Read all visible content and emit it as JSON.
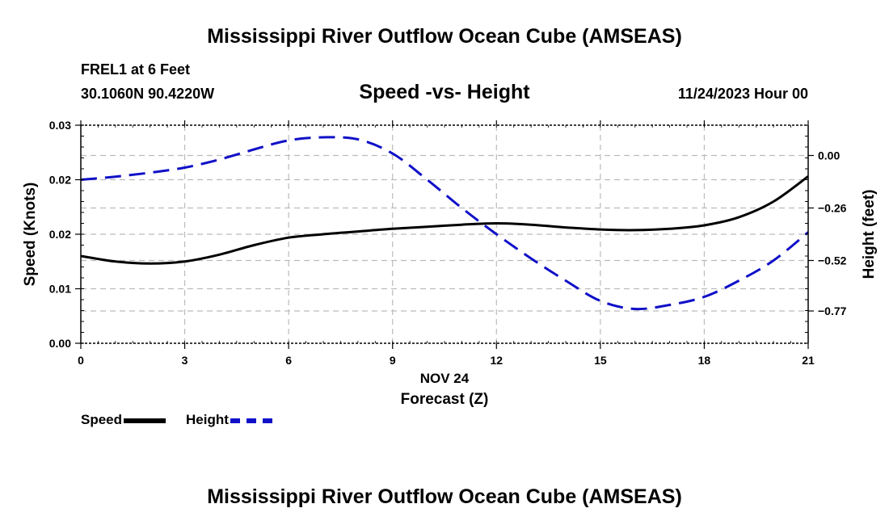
{
  "header": {
    "title_top": "Mississippi River Outflow Ocean Cube (AMSEAS)",
    "station": "FREL1 at 6 Feet",
    "coords": "30.1060N  90.4220W",
    "plot_title": "Speed -vs- Height",
    "datetime": "11/24/2023 Hour 00",
    "title_bottom": "Mississippi River Outflow Ocean Cube (AMSEAS)"
  },
  "legend": {
    "speed_label": "Speed",
    "height_label": "Height"
  },
  "colors": {
    "speed": "#000000",
    "height": "#1010c8",
    "grid": "#bbbbbb"
  },
  "chart_data": {
    "type": "line",
    "title": "Speed -vs- Height",
    "xlabel": "Forecast (Z)",
    "xlabel_date": "NOV 24",
    "ylabel": "Speed (Knots)",
    "y2label": "Height (feet)",
    "xlim": [
      0,
      21
    ],
    "ylim": [
      0,
      0.032
    ],
    "y2lim": [
      -0.93,
      0.15
    ],
    "x_ticks": [
      0,
      3,
      6,
      9,
      12,
      15,
      18,
      21
    ],
    "x_tick_labels": [
      "0",
      "3",
      "6",
      "9",
      "12",
      "15",
      "18",
      "21"
    ],
    "y_ticks": [
      0,
      0.008,
      0.016,
      0.024,
      0.032
    ],
    "y_tick_labels": [
      "0.00",
      "0.01",
      "0.02",
      "0.02",
      "0.03"
    ],
    "y2_ticks": [
      0.0,
      -0.26,
      -0.52,
      -0.77
    ],
    "y2_tick_labels": [
      "0.00",
      "−0.26",
      "−0.52",
      "−0.77"
    ],
    "series": [
      {
        "name": "Speed",
        "axis": "left",
        "style": "solid",
        "x": [
          0,
          1,
          2,
          3,
          4,
          5,
          6,
          7,
          8,
          9,
          10,
          11,
          12,
          13,
          14,
          15,
          16,
          17,
          18,
          19,
          20,
          21
        ],
        "values": [
          0.0128,
          0.012,
          0.0117,
          0.012,
          0.013,
          0.0144,
          0.0155,
          0.016,
          0.0164,
          0.0168,
          0.0171,
          0.0174,
          0.0176,
          0.0174,
          0.017,
          0.0167,
          0.0166,
          0.0168,
          0.0173,
          0.0185,
          0.0208,
          0.0245
        ]
      },
      {
        "name": "Height",
        "axis": "right",
        "style": "dashed",
        "x": [
          0,
          1,
          2,
          3,
          4,
          5,
          6,
          7,
          8,
          9,
          10,
          11,
          12,
          13,
          14,
          15,
          16,
          17,
          18,
          19,
          20,
          21
        ],
        "values": [
          -0.12,
          -0.105,
          -0.085,
          -0.06,
          -0.02,
          0.03,
          0.075,
          0.09,
          0.08,
          0.01,
          -0.12,
          -0.26,
          -0.39,
          -0.51,
          -0.62,
          -0.72,
          -0.76,
          -0.74,
          -0.7,
          -0.62,
          -0.52,
          -0.38
        ]
      }
    ]
  }
}
